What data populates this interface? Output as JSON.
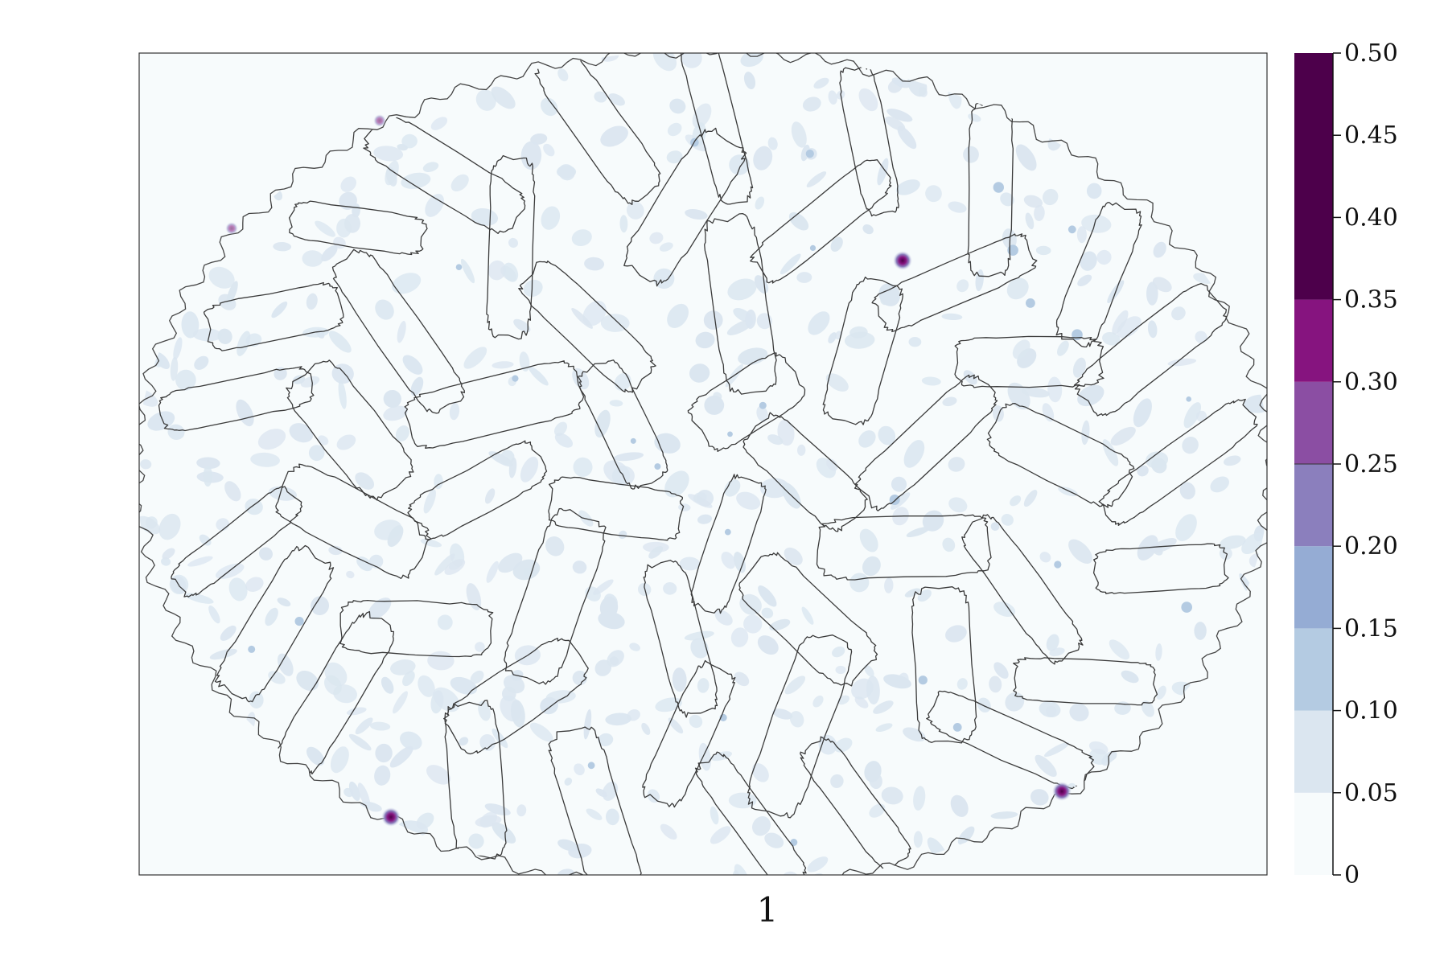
{
  "chart_data": {
    "type": "heatmap",
    "title": "",
    "xlabel": "1",
    "ylabel": "",
    "grid": false,
    "colorbar": {
      "position": "right",
      "range": [
        0,
        0.5
      ],
      "ticks": [
        "0",
        "0.05",
        "0.10",
        "0.15",
        "0.20",
        "0.25",
        "0.30",
        "0.35",
        "0.40",
        "0.45",
        "0.50"
      ],
      "levels": [
        {
          "from": 0.0,
          "to": 0.05,
          "color": "#f7fbfc"
        },
        {
          "from": 0.05,
          "to": 0.1,
          "color": "#dbe6f0"
        },
        {
          "from": 0.1,
          "to": 0.15,
          "color": "#b4cbe2"
        },
        {
          "from": 0.15,
          "to": 0.2,
          "color": "#95acd4"
        },
        {
          "from": 0.2,
          "to": 0.25,
          "color": "#8b7fbd"
        },
        {
          "from": 0.25,
          "to": 0.3,
          "color": "#8b4ea3"
        },
        {
          "from": 0.3,
          "to": 0.35,
          "color": "#86147f"
        },
        {
          "from": 0.35,
          "to": 0.5,
          "color": "#4d004b"
        }
      ]
    },
    "description_values": {
      "background_level": 0.02,
      "speckle_level": 0.08,
      "hotspot_level": 0.45
    }
  }
}
